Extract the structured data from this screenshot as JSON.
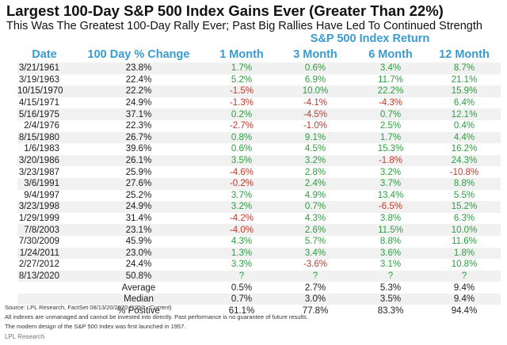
{
  "title": "Largest 100-Day S&P 500 Index Gains Ever (Greater Than 22%)",
  "subtitle": "This Was The Greatest 100-Day Rally Ever; Past Big Rallies Have Led To Continued Strength",
  "group_header": "S&P 500 Index Return",
  "columns": [
    "Date",
    "100 Day % Change",
    "1 Month",
    "3 Month",
    "6 Month",
    "12 Month"
  ],
  "colors": {
    "header_blue": "#3a9bd0",
    "positive_green": "#2b9e3f",
    "negative_red": "#c0392b",
    "stripe": "#f1f1f1"
  },
  "chart_data": {
    "type": "table",
    "columns": [
      "Date",
      "100 Day % Change",
      "1 Month",
      "3 Month",
      "6 Month",
      "12 Month"
    ],
    "rows": [
      [
        "3/21/1961",
        "23.8%",
        "1.7%",
        "0.6%",
        "3.4%",
        "8.7%"
      ],
      [
        "3/19/1963",
        "22.4%",
        "5.2%",
        "6.9%",
        "11.7%",
        "21.1%"
      ],
      [
        "10/15/1970",
        "22.2%",
        "-1.5%",
        "10.0%",
        "22.2%",
        "15.9%"
      ],
      [
        "4/15/1971",
        "24.9%",
        "-1.3%",
        "-4.1%",
        "-4.3%",
        "6.4%"
      ],
      [
        "5/16/1975",
        "37.1%",
        "0.2%",
        "-4.5%",
        "0.7%",
        "12.1%"
      ],
      [
        "2/4/1976",
        "22.3%",
        "-2.7%",
        "-1.0%",
        "2.5%",
        "0.4%"
      ],
      [
        "8/15/1980",
        "26.7%",
        "0.8%",
        "9.1%",
        "1.7%",
        "4.4%"
      ],
      [
        "1/6/1983",
        "39.6%",
        "0.6%",
        "4.5%",
        "15.3%",
        "16.2%"
      ],
      [
        "3/20/1986",
        "26.1%",
        "3.5%",
        "3.2%",
        "-1.8%",
        "24.3%"
      ],
      [
        "3/23/1987",
        "25.9%",
        "-4.6%",
        "2.8%",
        "3.2%",
        "-10.8%"
      ],
      [
        "3/6/1991",
        "27.6%",
        "-0.2%",
        "2.4%",
        "3.7%",
        "8.8%"
      ],
      [
        "9/4/1997",
        "25.2%",
        "3.7%",
        "4.9%",
        "13.4%",
        "5.5%"
      ],
      [
        "3/23/1998",
        "24.9%",
        "3.2%",
        "0.7%",
        "-6.5%",
        "15.2%"
      ],
      [
        "1/29/1999",
        "31.4%",
        "-4.2%",
        "4.3%",
        "3.8%",
        "6.3%"
      ],
      [
        "7/8/2003",
        "23.1%",
        "-4.0%",
        "2.6%",
        "11.5%",
        "10.0%"
      ],
      [
        "7/30/2009",
        "45.9%",
        "4.3%",
        "5.7%",
        "8.8%",
        "11.6%"
      ],
      [
        "1/24/2011",
        "23.0%",
        "1.3%",
        "3.4%",
        "3.6%",
        "1.8%"
      ],
      [
        "2/27/2012",
        "24.4%",
        "3.3%",
        "-3.6%",
        "3.1%",
        "10.8%"
      ],
      [
        "8/13/2020",
        "50.8%",
        "?",
        "?",
        "?",
        "?"
      ]
    ],
    "summary": [
      {
        "label": "Average",
        "values": [
          "0.5%",
          "2.7%",
          "5.3%",
          "9.4%"
        ]
      },
      {
        "label": "Median",
        "values": [
          "0.7%",
          "3.0%",
          "3.5%",
          "9.4%"
        ]
      },
      {
        "label": "% Positive",
        "values": [
          "61.1%",
          "77.8%",
          "83.3%",
          "94.4%"
        ]
      }
    ]
  },
  "footer": {
    "source": "Source: LPL Research, FactSet 08/13/20/2020 (1950 - Current)",
    "disclaimer": "All indexes are unmanaged and cannot be invested into directly. Past performance is no guarantee of future results.",
    "note": "The modern design of the S&P 500 Index was first launched in 1957.",
    "credit": "LPL Research"
  }
}
